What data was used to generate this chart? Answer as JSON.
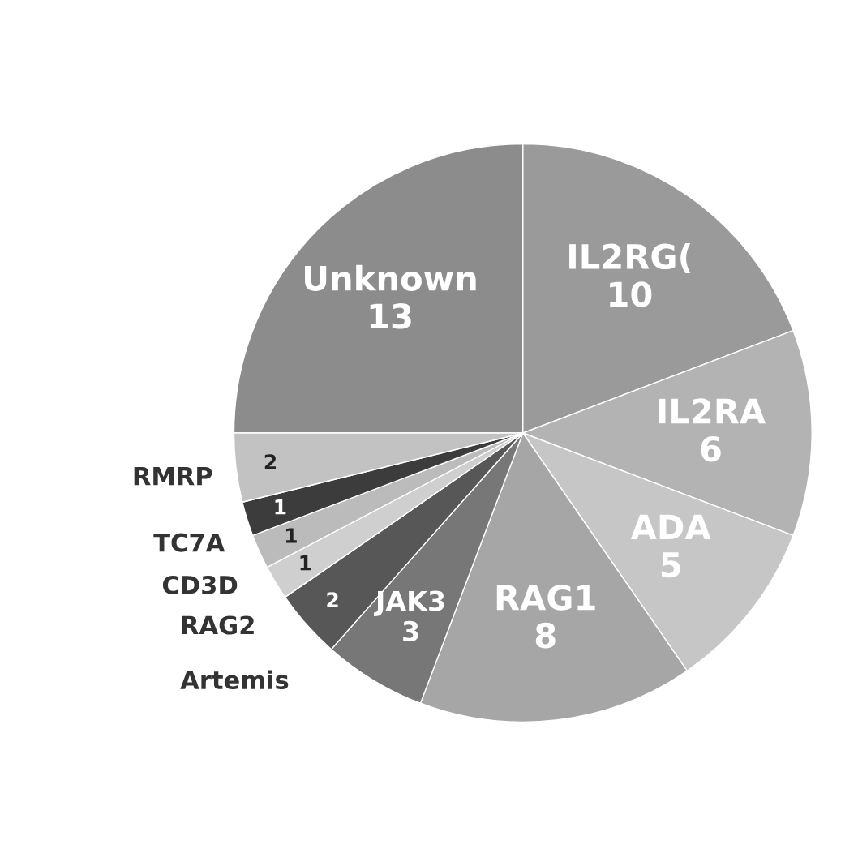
{
  "chart_data": {
    "type": "pie",
    "categories": [
      "Unknown",
      "IL2RG(",
      "IL2RA",
      "ADA",
      "RAG1",
      "JAK3",
      "Artemis",
      "RAG2",
      "CD3D",
      "TC7A",
      "RMRP"
    ],
    "values": [
      13,
      10,
      6,
      5,
      8,
      3,
      2,
      1,
      1,
      1,
      2
    ],
    "colors": [
      "#8c8c8c",
      "#9a9a9a",
      "#b3b3b3",
      "#c6c6c6",
      "#a6a6a6",
      "#777777",
      "#575757",
      "#cfcfcf",
      "#bbbbbb",
      "#3c3c3c",
      "#c2c2c2"
    ],
    "data_labels": true
  }
}
